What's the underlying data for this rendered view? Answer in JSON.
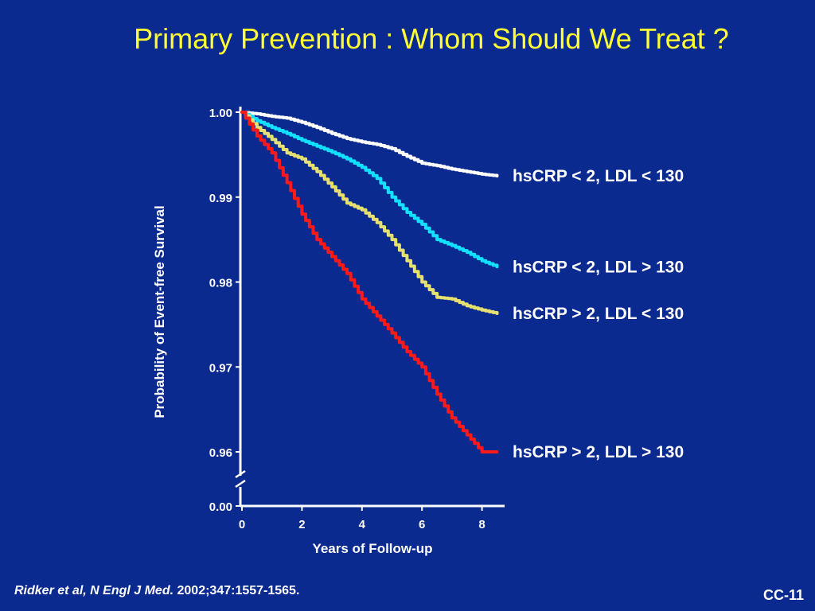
{
  "slide": {
    "title": "Primary Prevention : Whom Should We Treat ?",
    "citation_authors": "Ridker et al, N Engl J Med.",
    "citation_ref": " 2002;347:1557-1565.",
    "slide_number": "CC-11"
  },
  "chart_data": {
    "type": "line",
    "xlabel": "Years of Follow-up",
    "ylabel": "Probability of Event-free Survival",
    "xlim": [
      0,
      8.7
    ],
    "ylim": [
      0.96,
      1.0
    ],
    "y_axis_break": true,
    "y_break_bottom_label": "0.00",
    "x_ticks": [
      0,
      2,
      4,
      6,
      8
    ],
    "x_tick_labels": [
      "0",
      "2",
      "4",
      "6",
      "8"
    ],
    "y_ticks": [
      1.0,
      0.99,
      0.98,
      0.97,
      0.96
    ],
    "y_tick_labels": [
      "1.00",
      "0.99",
      "0.98",
      "0.97",
      "0.96"
    ],
    "legend": "inline labels at right end of each curve",
    "series": [
      {
        "name": "hsCRP < 2, LDL < 130",
        "color": "#ffffff",
        "x": [
          0,
          0.5,
          1.0,
          1.5,
          2.0,
          2.5,
          3.0,
          3.5,
          4.0,
          4.5,
          5.0,
          5.5,
          6.0,
          6.5,
          7.0,
          7.5,
          8.0,
          8.5
        ],
        "y": [
          1.0,
          0.9998,
          0.9995,
          0.9993,
          0.9988,
          0.9982,
          0.9975,
          0.9969,
          0.9965,
          0.9962,
          0.9957,
          0.9948,
          0.994,
          0.9937,
          0.9933,
          0.993,
          0.9927,
          0.9925
        ]
      },
      {
        "name": "hsCRP < 2, LDL > 130",
        "color": "#11e0ff",
        "x": [
          0,
          0.5,
          1.0,
          1.5,
          2.0,
          2.5,
          3.0,
          3.5,
          4.0,
          4.5,
          5.0,
          5.5,
          6.0,
          6.5,
          7.0,
          7.5,
          8.0,
          8.5
        ],
        "y": [
          1.0,
          0.999,
          0.9982,
          0.9975,
          0.9967,
          0.996,
          0.9953,
          0.9945,
          0.9935,
          0.9922,
          0.99,
          0.9882,
          0.9868,
          0.985,
          0.9843,
          0.9835,
          0.9825,
          0.9818
        ]
      },
      {
        "name": "hsCRP > 2, LDL < 130",
        "color": "#e6e070",
        "x": [
          0,
          0.5,
          1.0,
          1.5,
          2.0,
          2.5,
          3.0,
          3.5,
          4.0,
          4.5,
          5.0,
          5.5,
          6.0,
          6.5,
          7.0,
          7.5,
          8.0,
          8.5
        ],
        "y": [
          1.0,
          0.9982,
          0.9968,
          0.9952,
          0.9945,
          0.993,
          0.9912,
          0.9893,
          0.9885,
          0.987,
          0.985,
          0.9825,
          0.98,
          0.9782,
          0.978,
          0.9772,
          0.9767,
          0.9763
        ]
      },
      {
        "name": "hsCRP > 2, LDL > 130",
        "color": "#ff1a1a",
        "x": [
          0,
          0.5,
          1.0,
          1.5,
          2.0,
          2.5,
          3.0,
          3.5,
          4.0,
          4.5,
          5.0,
          5.5,
          6.0,
          6.5,
          7.0,
          7.5,
          8.0,
          8.5
        ],
        "y": [
          1.0,
          0.9972,
          0.9952,
          0.9917,
          0.988,
          0.985,
          0.983,
          0.981,
          0.978,
          0.976,
          0.974,
          0.9718,
          0.97,
          0.9668,
          0.964,
          0.962,
          0.96,
          0.96
        ]
      }
    ]
  }
}
